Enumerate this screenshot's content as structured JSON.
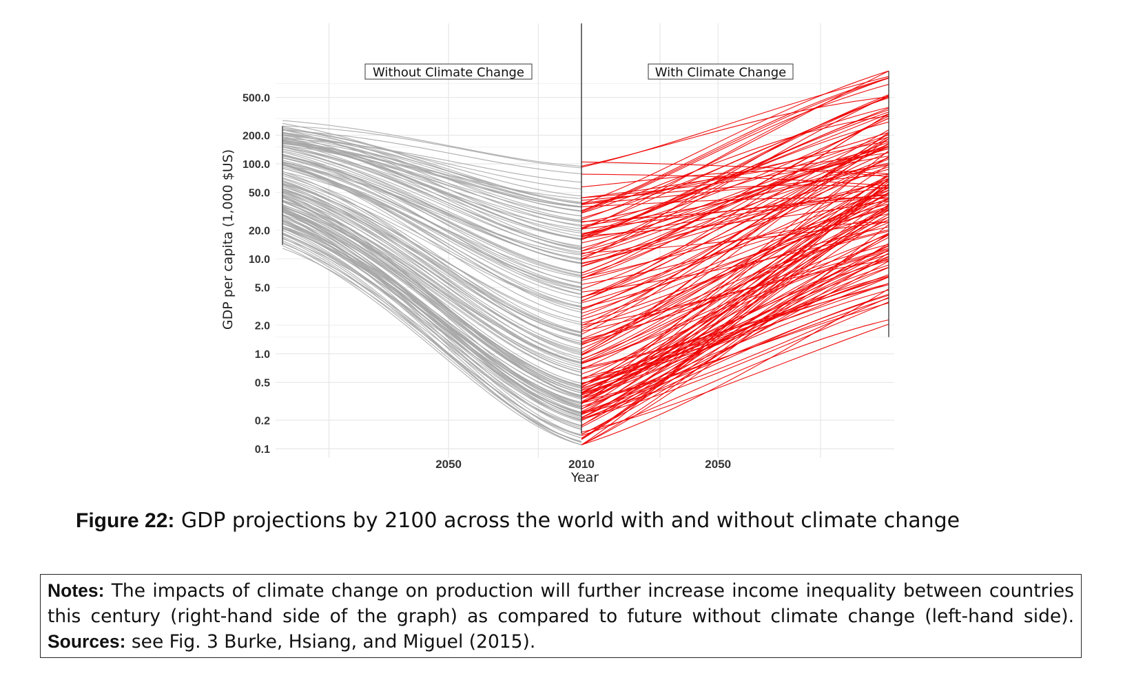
{
  "chart_data": {
    "type": "line",
    "title": "",
    "xlabel": "Year",
    "ylabel": "GDP per capita (1,000 $US)",
    "y_scale": "log",
    "ylim": [
      0.1,
      1000
    ],
    "y_ticks": [
      "500.0",
      "200.0",
      "100.0",
      "50.0",
      "20.0",
      "10.0",
      "5.0",
      "2.0",
      "1.0",
      "0.5",
      "0.2",
      "0.1"
    ],
    "grid": true,
    "legend": "none",
    "panels": [
      {
        "label": "Without Climate Change",
        "color": "#a6a6a6",
        "x_range": [
          2100,
          2010
        ],
        "x_ticks": [
          "2050",
          "2010"
        ],
        "series_count": 160,
        "start_value_range": [
          14,
          250
        ],
        "end_value_range": [
          0.13,
          60
        ]
      },
      {
        "label": "With Climate Change",
        "color": "#ee0000",
        "x_range": [
          2010,
          2100
        ],
        "x_ticks": [
          "2010",
          "2050"
        ],
        "series_count": 160,
        "start_value_range": [
          0.13,
          60
        ],
        "end_value_range": [
          1.5,
          1300
        ]
      }
    ]
  },
  "caption": {
    "label": "Figure 22:",
    "text": "GDP projections by 2100 across the world with and without climate change"
  },
  "notes": {
    "label": "Notes:",
    "text": "The impacts of climate change on production will further increase income inequality between countries this century (right-hand side of the graph) as compared to future without climate change (left-hand side).",
    "sources_label": "Sources:",
    "sources_text": "see Fig. 3 Burke, Hsiang, and Miguel (2015)."
  }
}
